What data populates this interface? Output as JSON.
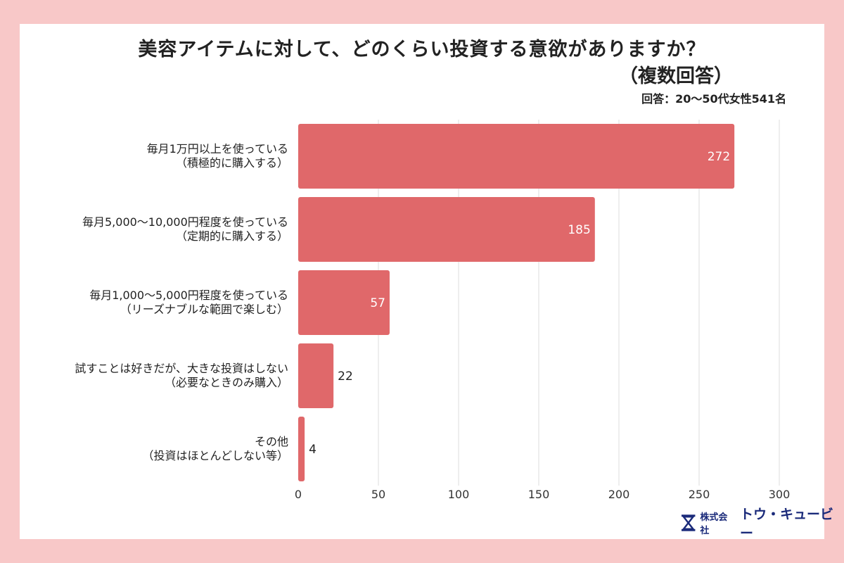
{
  "header": {
    "title": "美容アイテムに対して、どのくらい投資する意欲がありますか？",
    "subtitle": "（複数回答）",
    "note": "回答：20〜50代女性541名"
  },
  "chart_data": {
    "type": "bar",
    "orientation": "horizontal",
    "categories": [
      {
        "line1": "毎月1万円以上を使っている",
        "line2": "（積極的に購入する）"
      },
      {
        "line1": "毎月5,000〜10,000円程度を使っている",
        "line2": "（定期的に購入する）"
      },
      {
        "line1": "毎月1,000〜5,000円程度を使っている",
        "line2": "（リーズナブルな範囲で楽しむ）"
      },
      {
        "line1": "試すことは好きだが、大きな投資はしない",
        "line2": "（必要なときのみ購入）"
      },
      {
        "line1": "その他",
        "line2": "（投資はほとんどしない等）"
      }
    ],
    "values": [
      272,
      185,
      57,
      22,
      4
    ],
    "xlim": [
      0,
      300
    ],
    "xticks": [
      0,
      50,
      100,
      150,
      200,
      250,
      300
    ],
    "grid": true,
    "bar_color": "#e0686a",
    "label_color_inside": "#ffffff",
    "label_color_outside": "#222222"
  },
  "logo": {
    "company": "株式会社",
    "brand": "トウ・キュービー",
    "icon": "hourglass-icon",
    "color": "#1a2a7a"
  },
  "colors": {
    "frame": "#f8c8c8",
    "background": "#ffffff",
    "grid": "#dddddd"
  }
}
